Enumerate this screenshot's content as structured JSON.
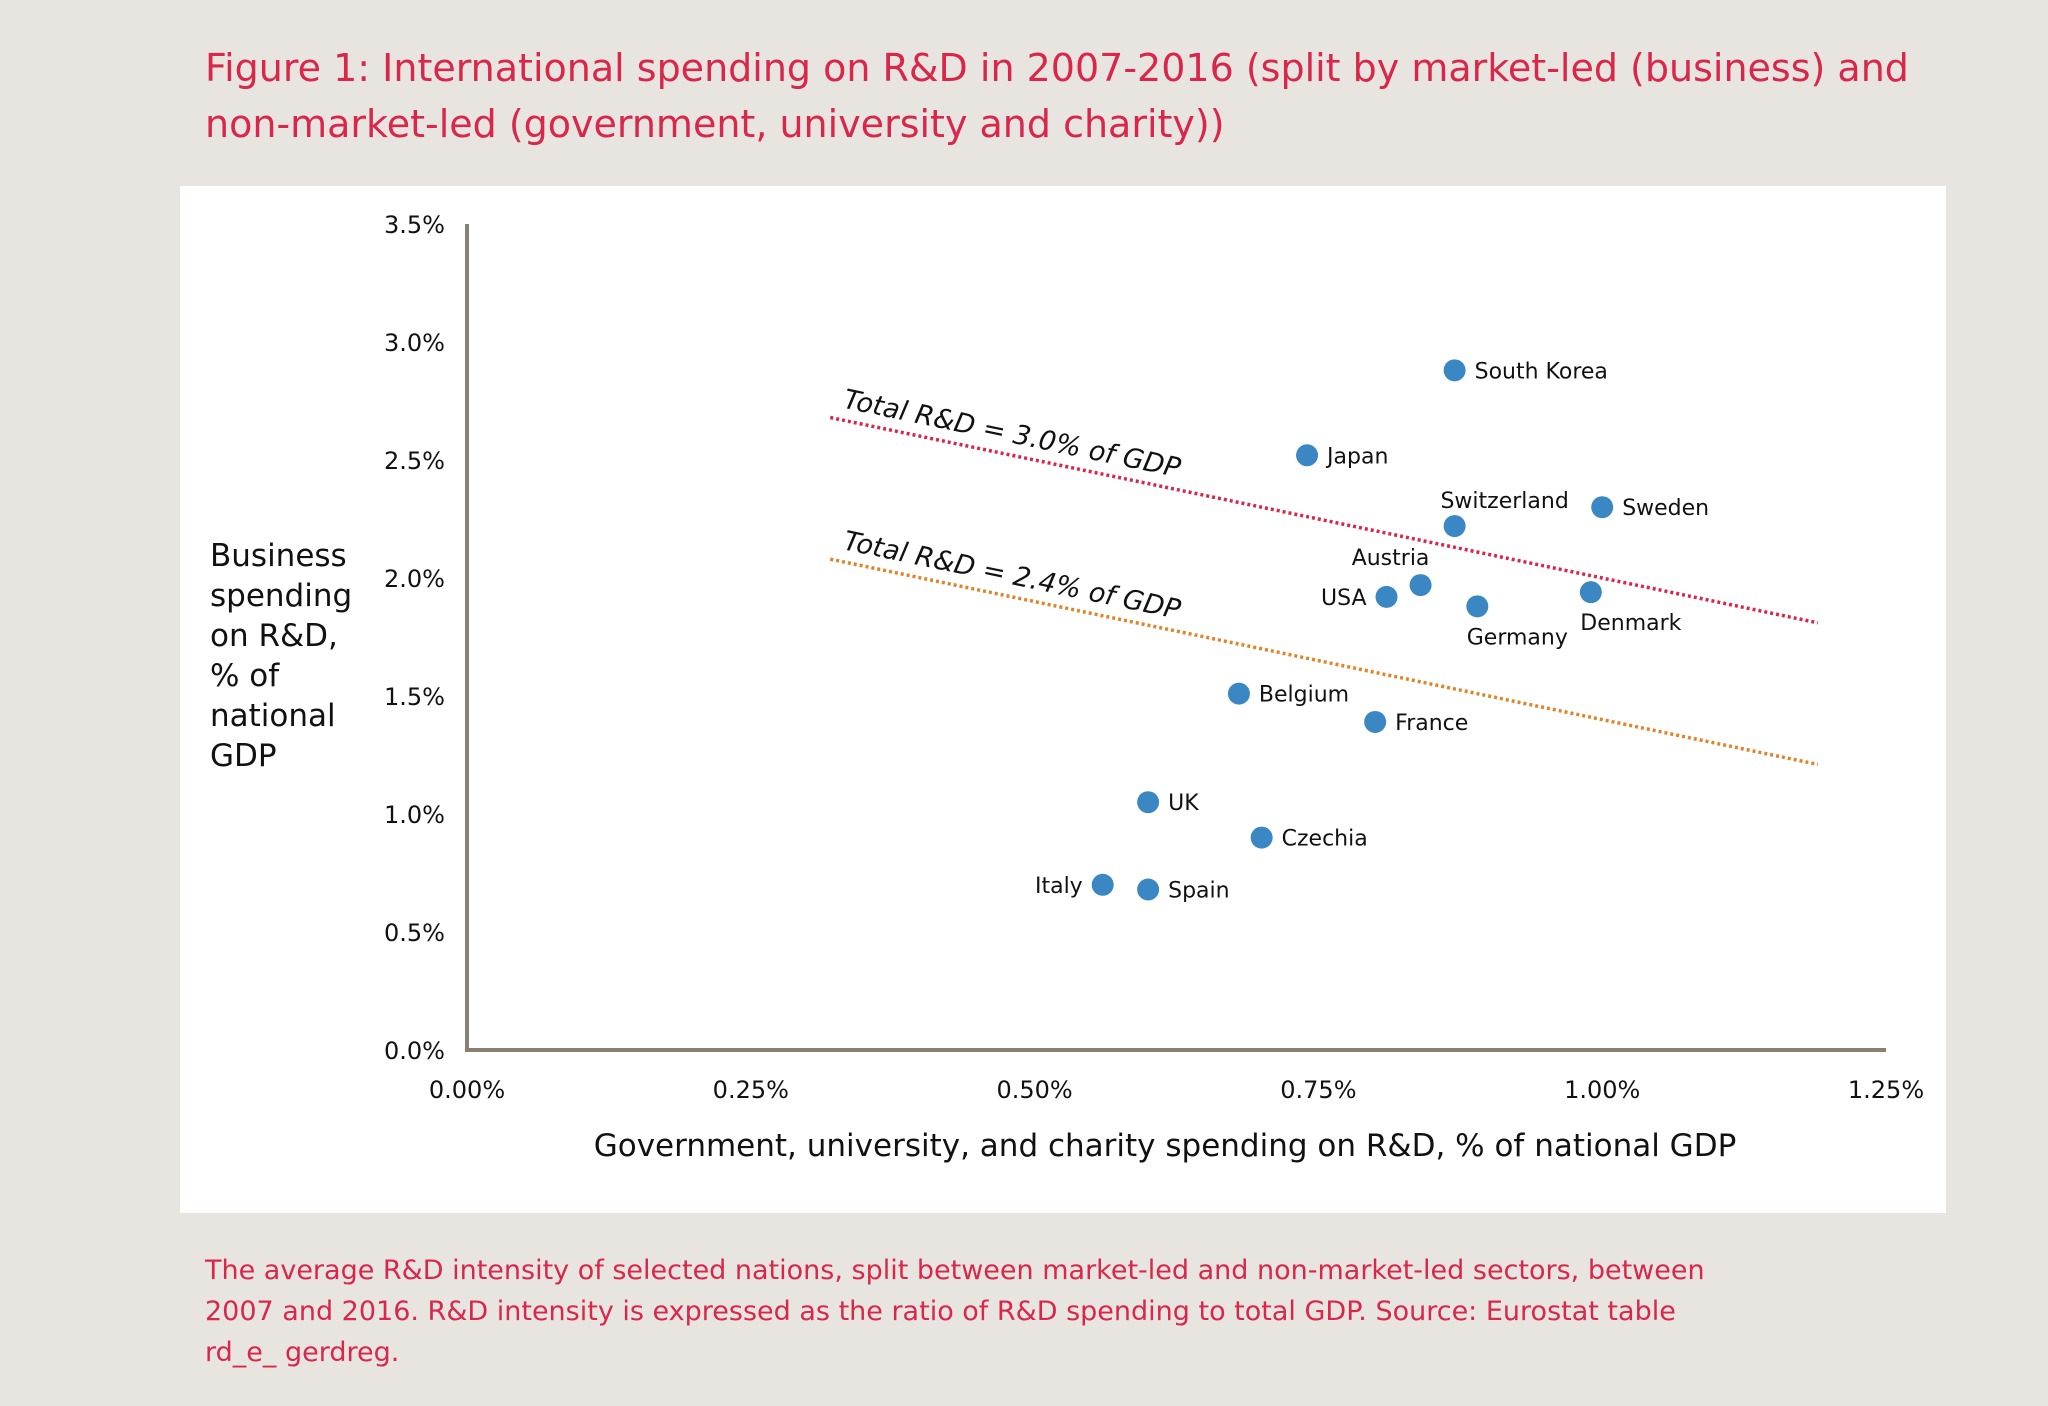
{
  "figure_title": "Figure 1: International spending on R&D in 2007-2016 (split by market-led (business) and non-market-led (government, university and charity))",
  "caption": "The average R&D intensity of selected nations, split between market-led and non-market-led sectors, between 2007 and 2016. R&D intensity is expressed as the ratio of R&D spending to total GDP. Source: Eurostat table rd_e_ gerdreg.",
  "colors": {
    "accent": "#d8274a",
    "point": "#3b87c4",
    "line_3_0": "#d8274a",
    "line_2_4": "#e0842a",
    "axis": "#8a7f72"
  },
  "chart_data": {
    "type": "scatter",
    "xlabel": "Government, university, and charity spending on R&D, % of national GDP",
    "ylabel": "Business spending on R&D, % of national GDP",
    "xlim": [
      0,
      1.25
    ],
    "ylim": [
      0,
      3.5
    ],
    "x_ticks": [
      "0.00%",
      "0.25%",
      "0.50%",
      "0.75%",
      "1.00%",
      "1.25%"
    ],
    "y_ticks": [
      "0.0%",
      "0.5%",
      "1.0%",
      "1.5%",
      "2.0%",
      "2.5%",
      "3.0%",
      "3.5%"
    ],
    "grid": false,
    "points": [
      {
        "label": "South Korea",
        "x": 0.87,
        "y": 2.88,
        "label_pos": "right"
      },
      {
        "label": "Japan",
        "x": 0.74,
        "y": 2.52,
        "label_pos": "right"
      },
      {
        "label": "Switzerland",
        "x": 0.87,
        "y": 2.22,
        "label_pos": "above"
      },
      {
        "label": "Sweden",
        "x": 1.0,
        "y": 2.3,
        "label_pos": "right"
      },
      {
        "label": "Austria",
        "x": 0.84,
        "y": 1.97,
        "label_pos": "above-left"
      },
      {
        "label": "USA",
        "x": 0.81,
        "y": 1.92,
        "label_pos": "left"
      },
      {
        "label": "Germany",
        "x": 0.89,
        "y": 1.88,
        "label_pos": "below-right"
      },
      {
        "label": "Denmark",
        "x": 0.99,
        "y": 1.94,
        "label_pos": "below-right"
      },
      {
        "label": "Belgium",
        "x": 0.68,
        "y": 1.51,
        "label_pos": "right"
      },
      {
        "label": "France",
        "x": 0.8,
        "y": 1.39,
        "label_pos": "right"
      },
      {
        "label": "UK",
        "x": 0.6,
        "y": 1.05,
        "label_pos": "right"
      },
      {
        "label": "Czechia",
        "x": 0.7,
        "y": 0.9,
        "label_pos": "right"
      },
      {
        "label": "Italy",
        "x": 0.56,
        "y": 0.7,
        "label_pos": "left"
      },
      {
        "label": "Spain",
        "x": 0.6,
        "y": 0.68,
        "label_pos": "right"
      }
    ],
    "reference_lines": [
      {
        "label": "Total R&D = 3.0% of GDP",
        "total": 3.0,
        "x_range": [
          0.32,
          1.19
        ],
        "style": "dotted"
      },
      {
        "label": "Total R&D = 2.4% of GDP",
        "total": 2.4,
        "x_range": [
          0.32,
          1.19
        ],
        "style": "dotted"
      }
    ]
  }
}
